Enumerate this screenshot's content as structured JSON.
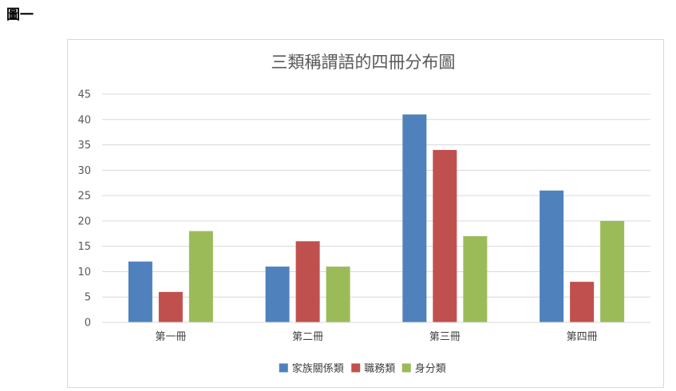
{
  "figure_label": "圖一",
  "chart_data": {
    "type": "bar",
    "title": "三類稱謂語的四冊分布圖",
    "categories": [
      "第一冊",
      "第二冊",
      "第三冊",
      "第四冊"
    ],
    "series": [
      {
        "name": "家族關係類",
        "values": [
          12,
          11,
          41,
          26
        ],
        "color": "#4f81bd"
      },
      {
        "name": "職務類",
        "values": [
          6,
          16,
          34,
          8
        ],
        "color": "#c0504d"
      },
      {
        "name": "身分類",
        "values": [
          18,
          11,
          17,
          20
        ],
        "color": "#9bbb59"
      }
    ],
    "ylim": [
      0,
      45
    ],
    "yticks": [
      0,
      5,
      10,
      15,
      20,
      25,
      30,
      35,
      40,
      45
    ],
    "grid": true,
    "legend": "bottom"
  }
}
